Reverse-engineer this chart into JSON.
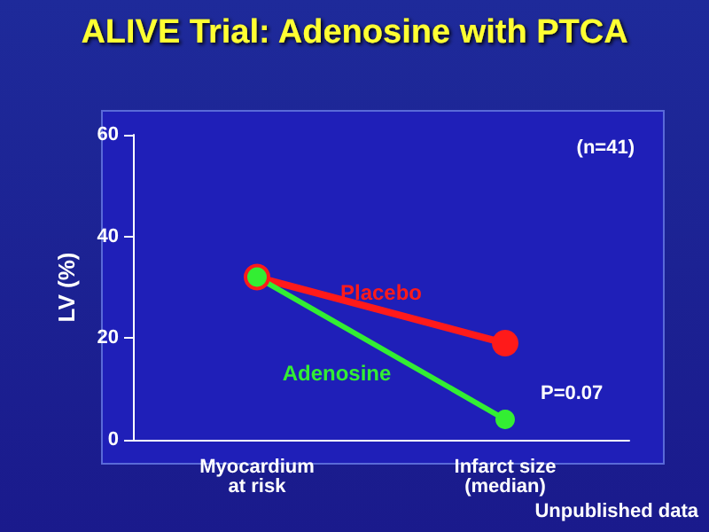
{
  "chart_data": {
    "type": "line",
    "title": "ALIVE Trial: Adenosine with PTCA",
    "ylabel": "LV (%)",
    "categories": [
      "Myocardium\nat risk",
      "Infarct size\n(median)"
    ],
    "series": [
      {
        "name": "Placebo",
        "color": "#ff1a1a",
        "values": [
          32,
          19
        ]
      },
      {
        "name": "Adenosine",
        "color": "#33ee33",
        "values": [
          32,
          4
        ]
      }
    ],
    "ylim": [
      0,
      60
    ],
    "yticks": [
      0,
      20,
      40,
      60
    ],
    "grid": false,
    "legend": false,
    "marker": "circle",
    "line_style": "solid",
    "annotations": [
      "(n=41)",
      "P=0.07",
      "Unpublished data"
    ]
  }
}
